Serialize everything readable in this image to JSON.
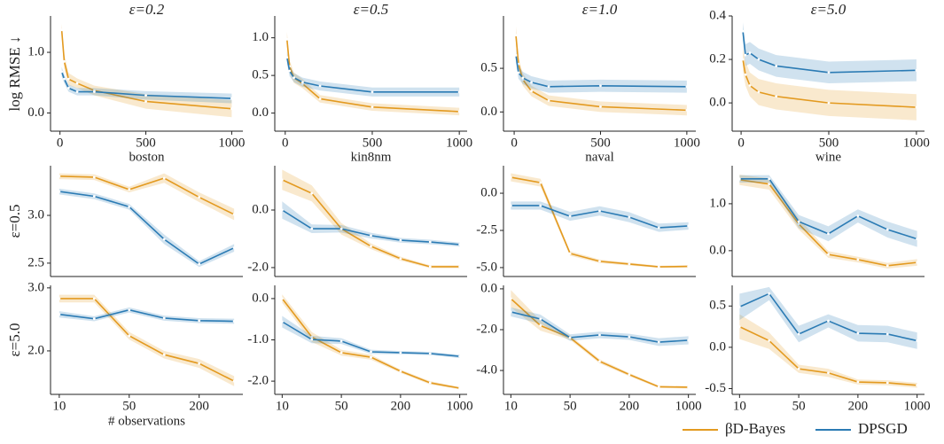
{
  "legend": {
    "position": "lower right",
    "entries": [
      {
        "name": "βD-Bayes",
        "color": "#e39a20"
      },
      {
        "name": "DPSGD",
        "color": "#2b7bb4"
      }
    ]
  },
  "chart_data": [
    {
      "type": "line",
      "title": "ε=0.2",
      "ylabel": "log RMSE ↓",
      "x": [
        10,
        25,
        50,
        100,
        200,
        500,
        1000
      ],
      "xlim": [
        -55,
        1065
      ],
      "xticks": [
        0,
        500,
        1000
      ],
      "ylim": [
        -0.3,
        1.6
      ],
      "yticks": [
        {
          "value": 0,
          "label": "0.0"
        },
        {
          "value": 1,
          "label": "1.0"
        }
      ],
      "series": [
        {
          "values": [
            1.37,
            0.85,
            0.56,
            0.49,
            0.37,
            0.19,
            0.07
          ],
          "lower": [
            1.27,
            0.73,
            0.46,
            0.41,
            0.29,
            0.07,
            -0.07
          ],
          "upper": [
            1.47,
            0.97,
            0.66,
            0.57,
            0.45,
            0.31,
            0.21
          ]
        },
        {
          "values": [
            0.68,
            0.56,
            0.41,
            0.35,
            0.35,
            0.29,
            0.24
          ],
          "lower": [
            0.6,
            0.49,
            0.35,
            0.29,
            0.29,
            0.22,
            0.16
          ],
          "upper": [
            0.76,
            0.63,
            0.47,
            0.41,
            0.41,
            0.36,
            0.32
          ]
        }
      ]
    },
    {
      "type": "line",
      "title": "ε=0.5",
      "x": [
        10,
        25,
        50,
        100,
        200,
        500,
        1000
      ],
      "xlim": [
        -60,
        1045
      ],
      "xticks": [
        0,
        500,
        1000
      ],
      "ylim": [
        -0.24,
        1.29
      ],
      "yticks": [
        {
          "value": 0,
          "label": "0.0"
        },
        0.5,
        {
          "value": 1,
          "label": "1.0"
        }
      ],
      "series": [
        {
          "values": [
            0.98,
            0.62,
            0.47,
            0.39,
            0.19,
            0.08,
            0.02
          ],
          "lower": [
            0.88,
            0.54,
            0.4,
            0.33,
            0.14,
            0.03,
            -0.03
          ],
          "upper": [
            1.08,
            0.7,
            0.54,
            0.45,
            0.24,
            0.13,
            0.07
          ]
        },
        {
          "values": [
            0.74,
            0.56,
            0.47,
            0.41,
            0.36,
            0.28,
            0.28
          ],
          "lower": [
            0.66,
            0.49,
            0.41,
            0.35,
            0.3,
            0.22,
            0.22
          ],
          "upper": [
            0.82,
            0.63,
            0.53,
            0.47,
            0.42,
            0.34,
            0.34
          ]
        }
      ]
    },
    {
      "type": "line",
      "title": "ε=1.0",
      "x": [
        10,
        25,
        50,
        100,
        200,
        500,
        1000
      ],
      "xlim": [
        -62,
        1052
      ],
      "xticks": [
        0,
        500,
        1000
      ],
      "ylim": [
        -0.22,
        1.1
      ],
      "yticks": [
        {
          "value": 0,
          "label": "0.0"
        },
        0.5
      ],
      "series": [
        {
          "values": [
            0.88,
            0.55,
            0.37,
            0.24,
            0.13,
            0.06,
            0.02
          ],
          "lower": [
            0.78,
            0.47,
            0.3,
            0.18,
            0.07,
            0.0,
            -0.04
          ],
          "upper": [
            0.98,
            0.63,
            0.44,
            0.3,
            0.19,
            0.12,
            0.08
          ]
        },
        {
          "values": [
            0.65,
            0.45,
            0.39,
            0.34,
            0.29,
            0.3,
            0.29
          ],
          "lower": [
            0.57,
            0.38,
            0.32,
            0.27,
            0.22,
            0.23,
            0.22
          ],
          "upper": [
            0.73,
            0.52,
            0.46,
            0.41,
            0.36,
            0.37,
            0.36
          ]
        }
      ]
    },
    {
      "type": "line",
      "title": "ε=5.0",
      "x": [
        10,
        25,
        50,
        100,
        200,
        500,
        1000
      ],
      "xlim": [
        -51,
        1046
      ],
      "xticks": [
        0,
        500,
        1000
      ],
      "ylim": [
        -0.13,
        0.4
      ],
      "yticks": [
        {
          "value": 0,
          "label": "0.0"
        },
        0.2,
        0.4
      ],
      "series": [
        {
          "values": [
            0.2,
            0.13,
            0.08,
            0.05,
            0.03,
            0.0,
            -0.02
          ],
          "lower": [
            0.15,
            0.08,
            0.03,
            -0.01,
            -0.03,
            -0.06,
            -0.08
          ],
          "upper": [
            0.25,
            0.19,
            0.14,
            0.11,
            0.09,
            0.06,
            0.04
          ]
        },
        {
          "values": [
            0.33,
            0.22,
            0.23,
            0.2,
            0.17,
            0.14,
            0.15
          ],
          "lower": [
            0.29,
            0.17,
            0.18,
            0.15,
            0.12,
            0.09,
            0.1
          ],
          "upper": [
            0.37,
            0.27,
            0.28,
            0.25,
            0.22,
            0.19,
            0.2
          ]
        }
      ]
    },
    {
      "type": "line",
      "title": "boston",
      "ylabel": "ε=0.5",
      "ylim": [
        2.36,
        3.52
      ],
      "yticks": [
        2.5,
        {
          "value": 3,
          "label": "3.0"
        }
      ],
      "series": [
        {
          "values": [
            3.41,
            3.4,
            3.27,
            3.39,
            3.19,
            3.01
          ],
          "lower": [
            3.38,
            3.37,
            3.24,
            3.34,
            3.14,
            2.95
          ],
          "upper": [
            3.44,
            3.43,
            3.3,
            3.44,
            3.24,
            3.07
          ]
        },
        {
          "values": [
            3.25,
            3.2,
            3.09,
            2.75,
            2.49,
            2.66
          ],
          "lower": [
            3.22,
            3.17,
            3.06,
            2.7,
            2.46,
            2.62
          ],
          "upper": [
            3.28,
            3.23,
            3.12,
            2.8,
            2.52,
            2.7
          ]
        }
      ]
    },
    {
      "type": "line",
      "title": "kin8nm",
      "ylim": [
        -2.31,
        1.54
      ],
      "yticks": [
        {
          "value": -2,
          "label": "-2.0"
        },
        {
          "value": 0,
          "label": "0.0"
        }
      ],
      "series": [
        {
          "values": [
            1.05,
            0.58,
            -0.65,
            -1.26,
            -1.69,
            -1.97,
            -1.97
          ],
          "lower": [
            0.7,
            0.3,
            -0.85,
            -1.36,
            -1.76,
            -2.02,
            -2.02
          ],
          "upper": [
            1.4,
            0.86,
            -0.45,
            -1.16,
            -1.62,
            -1.92,
            -1.92
          ]
        },
        {
          "values": [
            0.0,
            -0.65,
            -0.65,
            -0.89,
            -1.05,
            -1.11,
            -1.2
          ],
          "lower": [
            -0.3,
            -0.8,
            -0.78,
            -0.99,
            -1.13,
            -1.19,
            -1.27
          ],
          "upper": [
            0.3,
            -0.5,
            -0.52,
            -0.79,
            -0.97,
            -1.03,
            -1.13
          ]
        }
      ]
    },
    {
      "type": "line",
      "title": "naval",
      "ylim": [
        -5.6,
        1.85
      ],
      "yticks": [
        {
          "value": -5,
          "label": "-5.0"
        },
        -2.5,
        {
          "value": 0,
          "label": "0.0"
        }
      ],
      "series": [
        {
          "values": [
            1.07,
            0.71,
            -4.05,
            -4.58,
            -4.76,
            -4.95,
            -4.92
          ],
          "lower": [
            0.8,
            0.45,
            -4.2,
            -4.7,
            -4.86,
            -5.02,
            -5.0
          ],
          "upper": [
            1.34,
            0.97,
            -3.9,
            -4.46,
            -4.66,
            -4.88,
            -4.84
          ]
        },
        {
          "values": [
            -0.83,
            -0.83,
            -1.55,
            -1.19,
            -1.61,
            -2.32,
            -2.2
          ],
          "lower": [
            -1.1,
            -1.1,
            -1.85,
            -1.5,
            -1.95,
            -2.6,
            -2.45
          ],
          "upper": [
            -0.56,
            -0.56,
            -1.25,
            -0.88,
            -1.27,
            -2.04,
            -1.95
          ]
        }
      ]
    },
    {
      "type": "line",
      "title": "wine",
      "ylim": [
        -0.55,
        1.81
      ],
      "yticks": [
        {
          "value": 0,
          "label": "0.0"
        },
        {
          "value": 1,
          "label": "1.0"
        }
      ],
      "series": [
        {
          "values": [
            1.51,
            1.42,
            0.57,
            -0.08,
            -0.19,
            -0.32,
            -0.25
          ],
          "lower": [
            1.4,
            1.3,
            0.45,
            -0.15,
            -0.25,
            -0.38,
            -0.32
          ],
          "upper": [
            1.62,
            1.54,
            0.69,
            -0.01,
            -0.13,
            -0.26,
            -0.18
          ]
        },
        {
          "values": [
            1.53,
            1.53,
            0.62,
            0.36,
            0.74,
            0.45,
            0.25
          ],
          "lower": [
            1.45,
            1.45,
            0.48,
            0.2,
            0.6,
            0.28,
            0.08
          ],
          "upper": [
            1.61,
            1.61,
            0.76,
            0.52,
            0.88,
            0.62,
            0.42
          ]
        }
      ]
    },
    {
      "type": "line",
      "ylabel": "ε=5.0",
      "xlabel": "# observations",
      "categories": [
        "10",
        null,
        "50",
        null,
        "200",
        null
      ],
      "ylim": [
        1.31,
        3.04
      ],
      "yticks": [
        {
          "value": 2,
          "label": "2.0"
        },
        {
          "value": 3,
          "label": "3.0"
        }
      ],
      "series": [
        {
          "values": [
            2.83,
            2.83,
            2.24,
            1.94,
            1.8,
            1.52
          ],
          "lower": [
            2.77,
            2.77,
            2.18,
            1.88,
            1.73,
            1.44
          ],
          "upper": [
            2.89,
            2.89,
            2.3,
            2.0,
            1.87,
            1.6
          ]
        },
        {
          "values": [
            2.58,
            2.51,
            2.65,
            2.52,
            2.48,
            2.47
          ],
          "lower": [
            2.53,
            2.47,
            2.61,
            2.48,
            2.44,
            2.43
          ],
          "upper": [
            2.63,
            2.55,
            2.69,
            2.56,
            2.52,
            2.51
          ]
        }
      ]
    },
    {
      "type": "line",
      "categories": [
        "10",
        null,
        "50",
        null,
        "200",
        null,
        "1000"
      ],
      "ylim": [
        -2.32,
        0.32
      ],
      "yticks": [
        {
          "value": -2,
          "label": "-2.0"
        },
        {
          "value": -1,
          "label": "-1.0"
        },
        {
          "value": 0,
          "label": "0.0"
        }
      ],
      "series": [
        {
          "values": [
            0.0,
            -0.93,
            -1.31,
            -1.42,
            -1.76,
            -2.04,
            -2.17
          ],
          "lower": [
            -0.1,
            -1.05,
            -1.38,
            -1.48,
            -1.8,
            -2.08,
            -2.2
          ],
          "upper": [
            0.1,
            -0.81,
            -1.24,
            -1.36,
            -1.72,
            -2.0,
            -2.14
          ]
        },
        {
          "values": [
            -0.56,
            -0.99,
            -1.03,
            -1.29,
            -1.31,
            -1.33,
            -1.4
          ],
          "lower": [
            -0.7,
            -1.08,
            -1.1,
            -1.34,
            -1.35,
            -1.37,
            -1.44
          ],
          "upper": [
            -0.42,
            -0.9,
            -0.96,
            -1.24,
            -1.27,
            -1.29,
            -1.36
          ]
        }
      ]
    },
    {
      "type": "line",
      "categories": [
        "10",
        null,
        "50",
        null,
        "200",
        null,
        "1000"
      ],
      "ylim": [
        -5.17,
        0.17
      ],
      "yticks": [
        {
          "value": -4,
          "label": "-4.0"
        },
        {
          "value": -2,
          "label": "-2.0"
        },
        {
          "value": 0,
          "label": "0.0"
        }
      ],
      "series": [
        {
          "values": [
            -0.48,
            -1.8,
            -2.39,
            -3.55,
            -4.2,
            -4.8,
            -4.82
          ],
          "lower": [
            -0.9,
            -2.05,
            -2.5,
            -3.65,
            -4.28,
            -4.86,
            -4.88
          ],
          "upper": [
            -0.06,
            -1.55,
            -2.28,
            -3.45,
            -4.12,
            -4.74,
            -4.76
          ]
        },
        {
          "values": [
            -1.13,
            -1.48,
            -2.39,
            -2.26,
            -2.35,
            -2.61,
            -2.52
          ],
          "lower": [
            -1.35,
            -1.7,
            -2.55,
            -2.42,
            -2.5,
            -2.8,
            -2.72
          ],
          "upper": [
            -0.91,
            -1.26,
            -2.23,
            -2.1,
            -2.2,
            -2.42,
            -2.32
          ]
        }
      ]
    },
    {
      "type": "line",
      "categories": [
        "10",
        null,
        "50",
        null,
        "200",
        null,
        "1000"
      ],
      "ylim": [
        -0.57,
        0.75
      ],
      "yticks": [
        -0.5,
        {
          "value": 0,
          "label": "0.0"
        },
        0.5
      ],
      "series": [
        {
          "values": [
            0.25,
            0.08,
            -0.26,
            -0.31,
            -0.42,
            -0.43,
            -0.46
          ],
          "lower": [
            0.1,
            -0.02,
            -0.31,
            -0.36,
            -0.45,
            -0.46,
            -0.49
          ],
          "upper": [
            0.4,
            0.18,
            -0.21,
            -0.26,
            -0.39,
            -0.4,
            -0.43
          ]
        },
        {
          "values": [
            0.49,
            0.65,
            0.16,
            0.32,
            0.17,
            0.16,
            0.08
          ],
          "lower": [
            0.33,
            0.57,
            0.06,
            0.24,
            0.07,
            0.06,
            -0.02
          ],
          "upper": [
            0.65,
            0.73,
            0.26,
            0.4,
            0.27,
            0.26,
            0.18
          ]
        }
      ]
    }
  ]
}
